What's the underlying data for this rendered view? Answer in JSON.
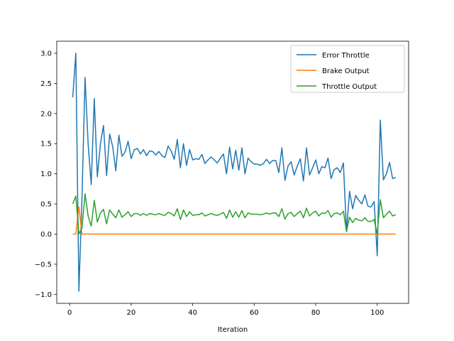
{
  "chart_data": {
    "type": "line",
    "title": "",
    "xlabel": "Iteration",
    "ylabel": "",
    "xlim": [
      -4.2,
      110.2
    ],
    "ylim": [
      -1.15,
      3.2
    ],
    "xticks": [
      0,
      20,
      40,
      60,
      80,
      100
    ],
    "yticks": [
      -1.0,
      -0.5,
      0.0,
      0.5,
      1.0,
      1.5,
      2.0,
      2.5,
      3.0
    ],
    "legend_position": "upper right",
    "grid": false,
    "x_start": 1,
    "series": [
      {
        "name": "Error Throttle",
        "color": "#1f77b4",
        "values": [
          2.27,
          3.0,
          -0.95,
          0.6,
          2.6,
          1.5,
          0.82,
          2.25,
          0.95,
          1.5,
          1.8,
          0.97,
          1.66,
          1.45,
          1.05,
          1.64,
          1.29,
          1.36,
          1.54,
          1.25,
          1.4,
          1.42,
          1.33,
          1.4,
          1.3,
          1.38,
          1.37,
          1.31,
          1.37,
          1.3,
          1.27,
          1.46,
          1.38,
          1.24,
          1.57,
          1.1,
          1.5,
          1.14,
          1.4,
          1.23,
          1.25,
          1.24,
          1.32,
          1.17,
          1.23,
          1.28,
          1.23,
          1.18,
          1.26,
          1.33,
          1.0,
          1.44,
          1.08,
          1.39,
          1.06,
          1.43,
          1.0,
          1.26,
          1.2,
          1.16,
          1.16,
          1.14,
          1.17,
          1.24,
          1.17,
          1.22,
          1.22,
          1.02,
          1.43,
          0.89,
          1.13,
          1.2,
          0.98,
          1.13,
          1.25,
          0.88,
          1.43,
          0.98,
          1.1,
          1.23,
          1.0,
          1.12,
          1.1,
          1.26,
          0.92,
          1.07,
          1.1,
          1.02,
          1.18,
          0.04,
          0.71,
          0.42,
          0.64,
          0.56,
          0.5,
          0.65,
          0.46,
          0.45,
          0.54,
          -0.36,
          1.89,
          0.9,
          1.0,
          1.19,
          0.92,
          0.94
        ]
      },
      {
        "name": "Brake Output",
        "color": "#ff7f0e",
        "values": [
          0.0,
          0.0,
          0.45,
          0.0,
          0.0,
          0.0,
          0.0,
          0.0,
          0.0,
          0.0,
          0.0,
          0.0,
          0.0,
          0.0,
          0.0,
          0.0,
          0.0,
          0.0,
          0.0,
          0.0,
          0.0,
          0.0,
          0.0,
          0.0,
          0.0,
          0.0,
          0.0,
          0.0,
          0.0,
          0.0,
          0.0,
          0.0,
          0.0,
          0.0,
          0.0,
          0.0,
          0.0,
          0.0,
          0.0,
          0.0,
          0.0,
          0.0,
          0.0,
          0.0,
          0.0,
          0.0,
          0.0,
          0.0,
          0.0,
          0.0,
          0.0,
          0.0,
          0.0,
          0.0,
          0.0,
          0.0,
          0.0,
          0.0,
          0.0,
          0.0,
          0.0,
          0.0,
          0.0,
          0.0,
          0.0,
          0.0,
          0.0,
          0.0,
          0.0,
          0.0,
          0.0,
          0.0,
          0.0,
          0.0,
          0.0,
          0.0,
          0.0,
          0.0,
          0.0,
          0.0,
          0.0,
          0.0,
          0.0,
          0.0,
          0.0,
          0.0,
          0.0,
          0.0,
          0.0,
          0.0,
          0.0,
          0.0,
          0.0,
          0.0,
          0.0,
          0.0,
          0.0,
          0.0,
          0.0,
          0.0,
          0.0,
          0.0,
          0.0,
          0.0,
          0.0,
          0.0
        ]
      },
      {
        "name": "Throttle Output",
        "color": "#2ca02c",
        "values": [
          0.5,
          0.63,
          0.0,
          0.1,
          0.67,
          0.3,
          0.13,
          0.56,
          0.2,
          0.35,
          0.41,
          0.17,
          0.4,
          0.33,
          0.27,
          0.4,
          0.28,
          0.32,
          0.37,
          0.29,
          0.34,
          0.34,
          0.31,
          0.34,
          0.31,
          0.34,
          0.33,
          0.32,
          0.34,
          0.32,
          0.31,
          0.36,
          0.34,
          0.3,
          0.42,
          0.24,
          0.4,
          0.29,
          0.37,
          0.31,
          0.32,
          0.32,
          0.35,
          0.3,
          0.32,
          0.34,
          0.32,
          0.31,
          0.33,
          0.36,
          0.26,
          0.4,
          0.28,
          0.37,
          0.28,
          0.39,
          0.27,
          0.35,
          0.33,
          0.33,
          0.33,
          0.32,
          0.33,
          0.35,
          0.33,
          0.35,
          0.35,
          0.29,
          0.42,
          0.25,
          0.34,
          0.36,
          0.29,
          0.34,
          0.38,
          0.27,
          0.43,
          0.3,
          0.35,
          0.38,
          0.3,
          0.35,
          0.34,
          0.39,
          0.28,
          0.34,
          0.35,
          0.32,
          0.38,
          0.04,
          0.28,
          0.19,
          0.26,
          0.23,
          0.22,
          0.27,
          0.21,
          0.21,
          0.24,
          0.0,
          0.57,
          0.27,
          0.33,
          0.38,
          0.3,
          0.32
        ]
      }
    ]
  }
}
